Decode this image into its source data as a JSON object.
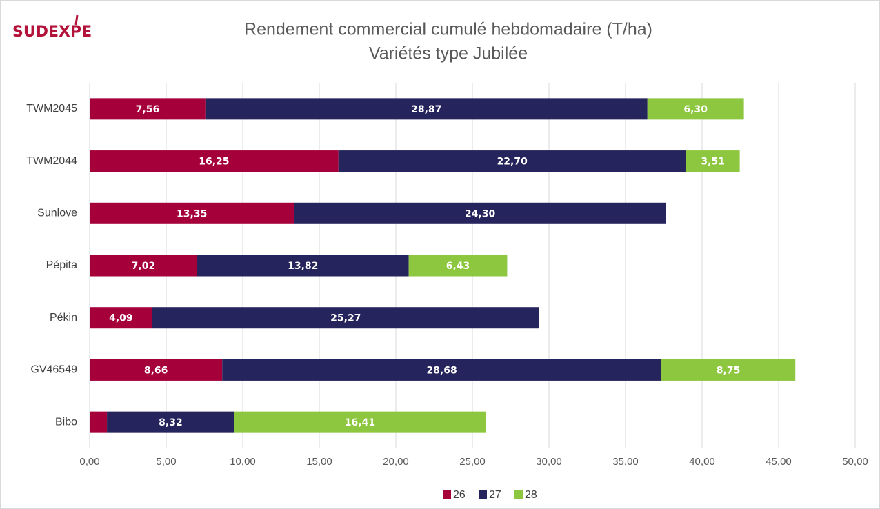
{
  "chart_data": {
    "type": "stacked-bar-horizontal",
    "logo": "SUDEXPE",
    "title": "Rendement commercial cumulé hebdomadaire (T/ha)",
    "subtitle": "Variétés type Jubilée",
    "categories": [
      "TWM2045",
      "TWM2044",
      "Sunlove",
      "Pépita",
      "Pékin",
      "GV46549",
      "Bibo"
    ],
    "series": [
      {
        "name": "26",
        "color": "#a5003a",
        "values": [
          7.56,
          16.25,
          13.35,
          7.02,
          4.09,
          8.66,
          1.13
        ],
        "value_labels": [
          "7,56",
          "16,25",
          "13,35",
          "7,02",
          "4,09",
          "8,66",
          null
        ]
      },
      {
        "name": "27",
        "color": "#26245c",
        "values": [
          28.87,
          22.7,
          24.3,
          13.82,
          25.27,
          28.68,
          8.32
        ],
        "value_labels": [
          "28,87",
          "22,70",
          "24,30",
          "13,82",
          "25,27",
          "28,68",
          "8,32"
        ]
      },
      {
        "name": "28",
        "color": "#8dc63f",
        "values": [
          6.3,
          3.51,
          null,
          6.43,
          null,
          8.75,
          16.41
        ],
        "value_labels": [
          "6,30",
          "3,51",
          null,
          "6,43",
          null,
          "8,75",
          "16,41"
        ]
      }
    ],
    "xlim": [
      0,
      50
    ],
    "xticks": [
      {
        "value": 0,
        "label": "0,00"
      },
      {
        "value": 5,
        "label": "5,00"
      },
      {
        "value": 10,
        "label": "10,00"
      },
      {
        "value": 15,
        "label": "15,00"
      },
      {
        "value": 20,
        "label": "20,00"
      },
      {
        "value": 25,
        "label": "25,00"
      },
      {
        "value": 30,
        "label": "30,00"
      },
      {
        "value": 35,
        "label": "35,00"
      },
      {
        "value": 40,
        "label": "40,00"
      },
      {
        "value": 45,
        "label": "45,00"
      },
      {
        "value": 50,
        "label": "50,00"
      }
    ],
    "grid": true,
    "legend": "bottom"
  }
}
